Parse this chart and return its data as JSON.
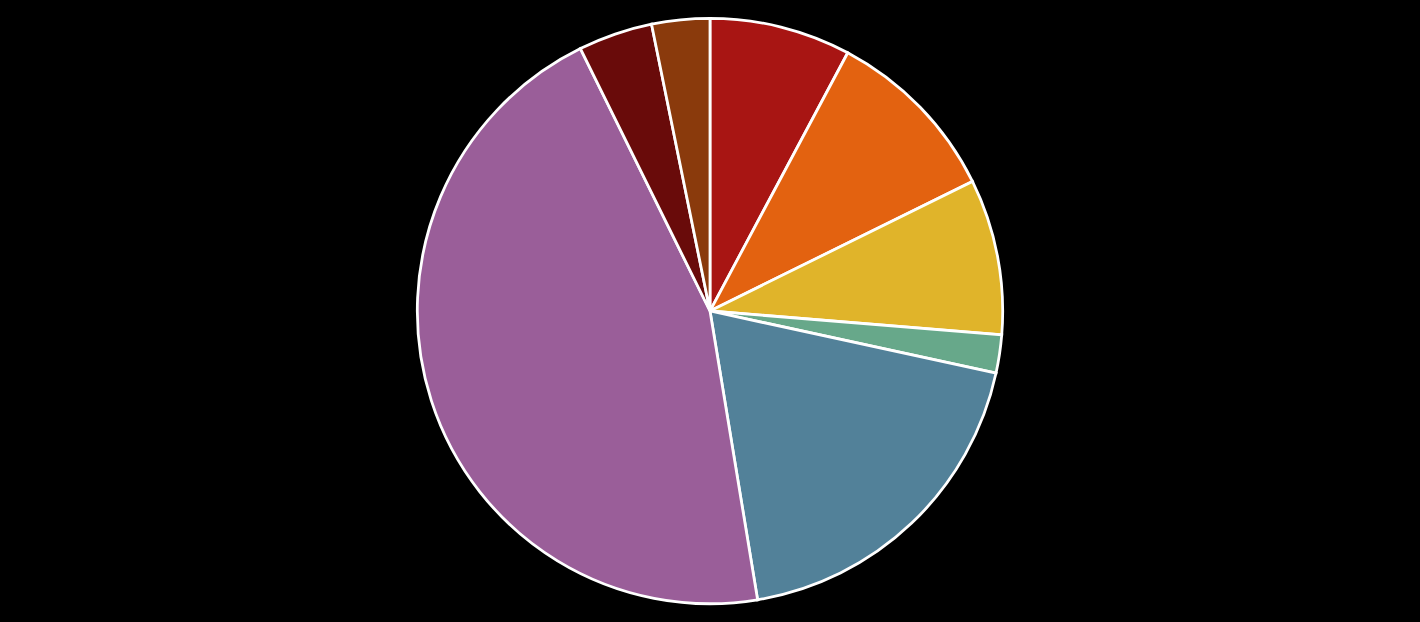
{
  "chart_data": {
    "type": "pie",
    "categories": [
      null,
      null,
      null,
      null,
      null,
      null,
      null,
      null
    ],
    "values": [
      7.8,
      9.9,
      8.6,
      2.1,
      19.0,
      45.3,
      4.1,
      3.2
    ],
    "colors": [
      "#a81513",
      "#e36210",
      "#e0b42a",
      "#67a88a",
      "#528199",
      "#9a5e99",
      "#690b0a",
      "#8a3a0c"
    ]
  }
}
